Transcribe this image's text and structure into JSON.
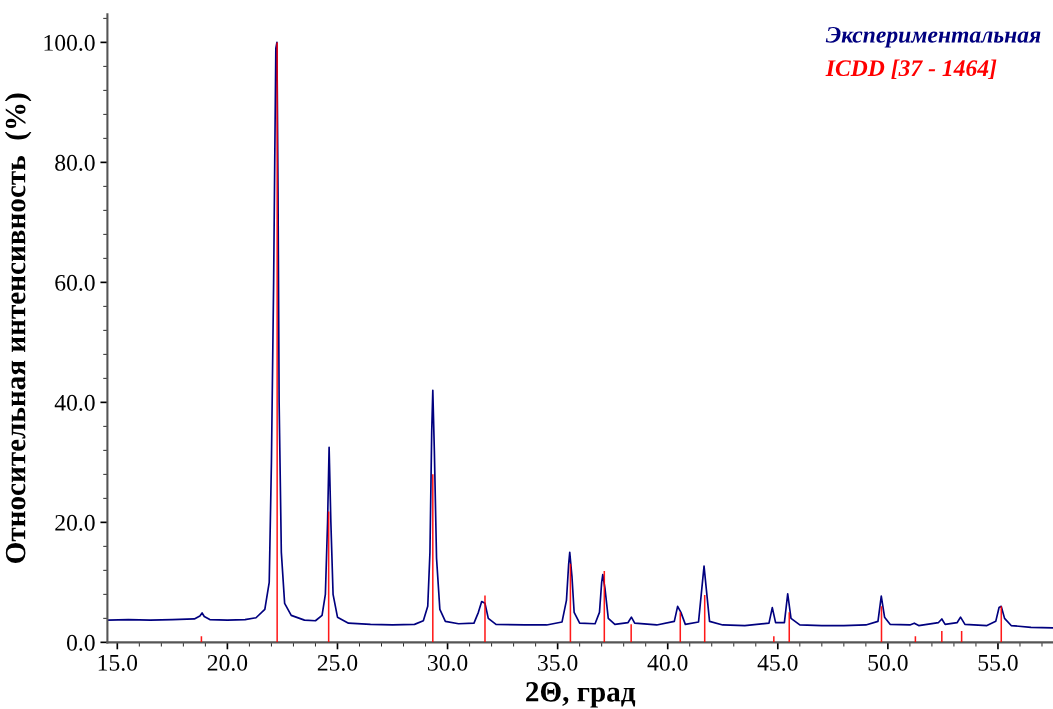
{
  "chart_data": {
    "type": "line",
    "xlabel": "2Θ, град",
    "ylabel": "Относительная интенсивность  (%)",
    "xlim": [
      14.55,
      57.5
    ],
    "ylim": [
      0,
      104.7
    ],
    "xticks": [
      {
        "value": 15,
        "label": "15.0"
      },
      {
        "value": 20,
        "label": "20.0"
      },
      {
        "value": 25,
        "label": "25.0"
      },
      {
        "value": 30,
        "label": "30.0"
      },
      {
        "value": 35,
        "label": "35.0"
      },
      {
        "value": 40,
        "label": "40.0"
      },
      {
        "value": 45,
        "label": "45.0"
      },
      {
        "value": 50,
        "label": "50.0"
      },
      {
        "value": 55,
        "label": "55.0"
      }
    ],
    "yticks": [
      {
        "value": 0,
        "label": "0.0"
      },
      {
        "value": 20,
        "label": "20.0"
      },
      {
        "value": 40,
        "label": "40.0"
      },
      {
        "value": 60,
        "label": "60.0"
      },
      {
        "value": 80,
        "label": "80.0"
      },
      {
        "value": 100,
        "label": "100.0"
      }
    ],
    "grid": false,
    "legend": "top right",
    "series": [
      {
        "name": "Экспериментальная",
        "color": "#00007f",
        "x": [
          14.6,
          15.5,
          16.5,
          17.5,
          18.5,
          18.75,
          18.85,
          18.95,
          19.2,
          20.0,
          20.8,
          21.3,
          21.7,
          21.9,
          22.0,
          22.1,
          22.15,
          22.2,
          22.25,
          22.3,
          22.35,
          22.45,
          22.6,
          22.9,
          23.5,
          24.0,
          24.3,
          24.45,
          24.55,
          24.62,
          24.7,
          24.8,
          25.0,
          25.5,
          26.5,
          27.5,
          28.5,
          28.9,
          29.1,
          29.2,
          29.28,
          29.33,
          29.4,
          29.5,
          29.65,
          29.9,
          30.5,
          31.2,
          31.4,
          31.55,
          31.7,
          31.85,
          32.2,
          33.5,
          34.5,
          35.2,
          35.4,
          35.5,
          35.55,
          35.65,
          35.75,
          36.0,
          36.7,
          36.9,
          37.0,
          37.05,
          37.15,
          37.3,
          37.6,
          38.2,
          38.35,
          38.5,
          39.5,
          40.3,
          40.45,
          40.6,
          40.8,
          41.4,
          41.55,
          41.65,
          41.75,
          41.9,
          42.5,
          43.5,
          44.6,
          44.75,
          44.9,
          45.3,
          45.45,
          45.6,
          46.0,
          47.0,
          48.0,
          49.0,
          49.55,
          49.7,
          49.85,
          50.1,
          51.0,
          51.2,
          51.4,
          52.3,
          52.45,
          52.6,
          53.15,
          53.3,
          53.5,
          54.5,
          54.9,
          55.05,
          55.15,
          55.3,
          55.6,
          56.5,
          57.5
        ],
        "values": [
          3.7,
          3.8,
          3.7,
          3.8,
          3.9,
          4.4,
          4.9,
          4.3,
          3.8,
          3.7,
          3.8,
          4.1,
          5.5,
          10,
          30,
          60,
          80,
          99,
          100,
          75,
          40,
          15,
          6.5,
          4.5,
          3.7,
          3.6,
          4.5,
          8,
          20,
          32.5,
          20,
          8,
          4.2,
          3.2,
          3.0,
          2.9,
          3.0,
          3.6,
          6,
          15,
          35,
          42,
          32,
          14,
          5.5,
          3.5,
          3.1,
          3.2,
          5,
          6.8,
          6.5,
          4,
          3.0,
          2.9,
          2.9,
          3.4,
          7,
          13,
          15,
          11,
          5,
          3.2,
          3.1,
          5,
          10,
          11.3,
          9,
          4,
          3.0,
          3.3,
          4.2,
          3.2,
          2.9,
          3.5,
          6.0,
          5,
          3.0,
          3.4,
          9,
          12.7,
          9,
          3.5,
          2.9,
          2.8,
          3.2,
          5.8,
          3.3,
          3.3,
          8.1,
          4,
          2.9,
          2.8,
          2.8,
          2.9,
          3.5,
          7.7,
          4.2,
          3.0,
          2.9,
          3.2,
          2.8,
          3.3,
          3.9,
          3.0,
          3.3,
          4.2,
          3.0,
          2.8,
          3.5,
          5.8,
          6.0,
          4,
          2.8,
          2.5,
          2.4
        ]
      },
      {
        "name": "ICDD [37 - 1464]",
        "type": "bar",
        "color": "#ff0000",
        "x": [
          18.82,
          22.26,
          24.6,
          29.33,
          31.7,
          35.58,
          37.12,
          38.34,
          40.57,
          41.68,
          44.82,
          45.52,
          49.71,
          51.25,
          52.45,
          53.35,
          55.15
        ],
        "values": [
          1.0,
          100,
          21.8,
          28,
          7.8,
          13.1,
          11.9,
          3.0,
          5.0,
          7.9,
          1.0,
          5.0,
          6.0,
          1.0,
          1.9,
          1.9,
          6.0
        ]
      }
    ]
  }
}
